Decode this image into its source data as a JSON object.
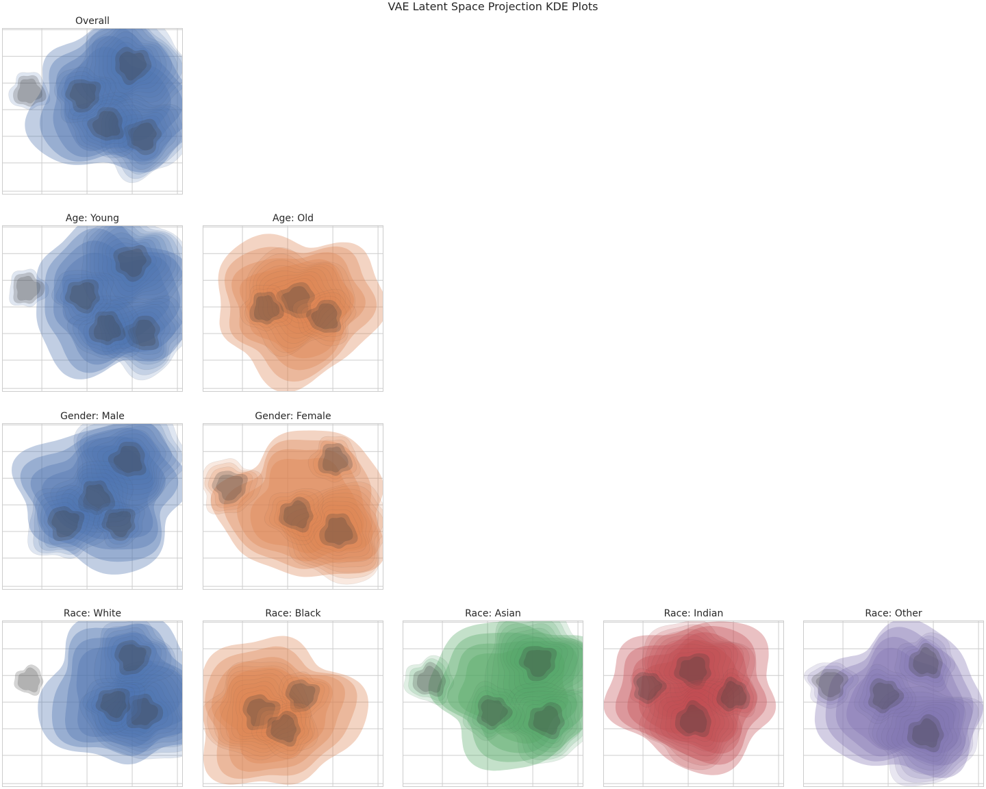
{
  "figure": {
    "title": "VAE Latent Space Projection KDE Plots"
  },
  "palette": {
    "blue": "#4c72b0",
    "orange": "#dd8452",
    "green": "#55a868",
    "red": "#c44e52",
    "purple": "#8172b3",
    "grid": "#cccccc",
    "frame": "#cccccc",
    "background": "#ffffff"
  },
  "chart_data": [
    {
      "type": "kde-contour",
      "title": "Overall",
      "color": "blue",
      "grid": true,
      "levels": 10,
      "density_peaks": [
        {
          "x": 0.72,
          "y": 0.22,
          "weight": 1.0
        },
        {
          "x": 0.78,
          "y": 0.65,
          "weight": 0.8
        },
        {
          "x": 0.58,
          "y": 0.58,
          "weight": 0.6
        },
        {
          "x": 0.15,
          "y": 0.38,
          "weight": 0.3
        },
        {
          "x": 0.45,
          "y": 0.4,
          "weight": 0.5
        }
      ]
    },
    {
      "type": "kde-contour",
      "title": "Age: Young",
      "color": "blue",
      "grid": true,
      "levels": 10,
      "density_peaks": [
        {
          "x": 0.72,
          "y": 0.22,
          "weight": 1.0
        },
        {
          "x": 0.78,
          "y": 0.65,
          "weight": 0.8
        },
        {
          "x": 0.58,
          "y": 0.62,
          "weight": 0.6
        },
        {
          "x": 0.14,
          "y": 0.38,
          "weight": 0.3
        },
        {
          "x": 0.45,
          "y": 0.42,
          "weight": 0.5
        }
      ]
    },
    {
      "type": "kde-contour",
      "title": "Age: Old",
      "color": "orange",
      "grid": true,
      "levels": 10,
      "density_peaks": [
        {
          "x": 0.52,
          "y": 0.45,
          "weight": 1.0
        },
        {
          "x": 0.68,
          "y": 0.55,
          "weight": 0.5
        },
        {
          "x": 0.35,
          "y": 0.5,
          "weight": 0.4
        }
      ]
    },
    {
      "type": "kde-contour",
      "title": "Gender: Male",
      "color": "blue",
      "grid": true,
      "levels": 10,
      "density_peaks": [
        {
          "x": 0.7,
          "y": 0.22,
          "weight": 1.0
        },
        {
          "x": 0.52,
          "y": 0.45,
          "weight": 0.7
        },
        {
          "x": 0.35,
          "y": 0.6,
          "weight": 0.7
        },
        {
          "x": 0.65,
          "y": 0.6,
          "weight": 0.4
        }
      ]
    },
    {
      "type": "kde-contour",
      "title": "Gender: Female",
      "color": "orange",
      "grid": true,
      "levels": 10,
      "density_peaks": [
        {
          "x": 0.75,
          "y": 0.65,
          "weight": 1.0
        },
        {
          "x": 0.73,
          "y": 0.22,
          "weight": 0.4
        },
        {
          "x": 0.15,
          "y": 0.38,
          "weight": 0.5
        },
        {
          "x": 0.52,
          "y": 0.55,
          "weight": 0.5
        }
      ]
    },
    {
      "type": "kde-contour",
      "title": "Race: White",
      "color": "blue",
      "grid": true,
      "levels": 10,
      "density_peaks": [
        {
          "x": 0.78,
          "y": 0.55,
          "weight": 1.0
        },
        {
          "x": 0.72,
          "y": 0.22,
          "weight": 0.7
        },
        {
          "x": 0.62,
          "y": 0.5,
          "weight": 0.5
        },
        {
          "x": 0.15,
          "y": 0.36,
          "weight": 0.2
        }
      ]
    },
    {
      "type": "kde-contour",
      "title": "Race: Black",
      "color": "orange",
      "grid": true,
      "levels": 10,
      "density_peaks": [
        {
          "x": 0.32,
          "y": 0.55,
          "weight": 1.0
        },
        {
          "x": 0.55,
          "y": 0.45,
          "weight": 0.4
        },
        {
          "x": 0.45,
          "y": 0.65,
          "weight": 0.5
        }
      ]
    },
    {
      "type": "kde-contour",
      "title": "Race: Asian",
      "color": "green",
      "grid": true,
      "levels": 10,
      "density_peaks": [
        {
          "x": 0.75,
          "y": 0.25,
          "weight": 1.0
        },
        {
          "x": 0.8,
          "y": 0.6,
          "weight": 0.8
        },
        {
          "x": 0.15,
          "y": 0.36,
          "weight": 0.4
        },
        {
          "x": 0.5,
          "y": 0.55,
          "weight": 0.5
        }
      ]
    },
    {
      "type": "kde-contour",
      "title": "Race: Indian",
      "color": "red",
      "grid": true,
      "levels": 10,
      "density_peaks": [
        {
          "x": 0.5,
          "y": 0.3,
          "weight": 1.0
        },
        {
          "x": 0.5,
          "y": 0.6,
          "weight": 0.9
        },
        {
          "x": 0.72,
          "y": 0.45,
          "weight": 0.4
        },
        {
          "x": 0.25,
          "y": 0.4,
          "weight": 0.3
        }
      ]
    },
    {
      "type": "kde-contour",
      "title": "Race: Other",
      "color": "purple",
      "grid": true,
      "levels": 10,
      "density_peaks": [
        {
          "x": 0.68,
          "y": 0.68,
          "weight": 1.0
        },
        {
          "x": 0.68,
          "y": 0.25,
          "weight": 0.5
        },
        {
          "x": 0.45,
          "y": 0.45,
          "weight": 0.5
        },
        {
          "x": 0.15,
          "y": 0.38,
          "weight": 0.4
        }
      ]
    }
  ]
}
